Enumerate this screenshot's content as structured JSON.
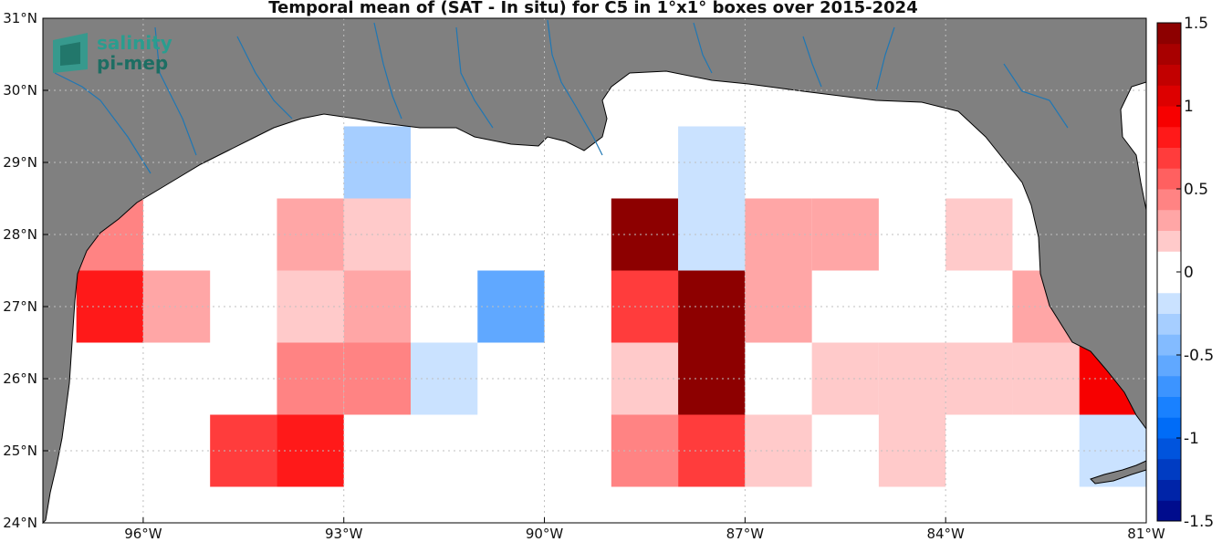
{
  "title": "Temporal mean of (SAT - In situ) for C5 in 1°x1° boxes over 2015-2024",
  "logo": {
    "line1": "salinity",
    "line2": "pi-mep"
  },
  "colors": {
    "land": "#808080",
    "river": "#1f77b4",
    "grid": "#bfbfbf"
  },
  "axes": {
    "lon_range": [
      -97.5,
      -81
    ],
    "lat_range": [
      24,
      31
    ],
    "lat_ticks": [
      {
        "value": 31,
        "label": "31°N"
      },
      {
        "value": 30,
        "label": "30°N"
      },
      {
        "value": 29,
        "label": "29°N"
      },
      {
        "value": 28,
        "label": "28°N"
      },
      {
        "value": 27,
        "label": "27°N"
      },
      {
        "value": 26,
        "label": "26°N"
      },
      {
        "value": 25,
        "label": "25°N"
      },
      {
        "value": 24,
        "label": "24°N"
      }
    ],
    "lon_ticks": [
      {
        "value": -96,
        "label": "96°W"
      },
      {
        "value": -93,
        "label": "93°W"
      },
      {
        "value": -90,
        "label": "90°W"
      },
      {
        "value": -87,
        "label": "87°W"
      },
      {
        "value": -84,
        "label": "84°W"
      },
      {
        "value": -81,
        "label": "81°W"
      }
    ]
  },
  "colorbar": {
    "range": [
      -1.5,
      1.5
    ],
    "ticks": [
      {
        "value": 1.5,
        "label": "1.5"
      },
      {
        "value": 1,
        "label": "1"
      },
      {
        "value": 0.5,
        "label": "0.5"
      },
      {
        "value": 0,
        "label": "0"
      },
      {
        "value": -0.5,
        "label": "-0.5"
      },
      {
        "value": -1,
        "label": "-1"
      },
      {
        "value": -1.5,
        "label": "-1.5"
      }
    ]
  },
  "chart_data": {
    "type": "heatmap",
    "title": "Temporal mean of (SAT - In situ) for C5 in 1°x1° boxes over 2015-2024",
    "box_size_deg": 1,
    "x_unit": "longitude (°)",
    "y_unit": "latitude (°)",
    "grid": "dotted",
    "cells": [
      {
        "lon": -92.5,
        "lat": 29,
        "value": -0.3
      },
      {
        "lon": -87.5,
        "lat": 29,
        "value": -0.15
      },
      {
        "lon": -96.5,
        "lat": 28,
        "value": 0.45
      },
      {
        "lon": -93.5,
        "lat": 28,
        "value": 0.3
      },
      {
        "lon": -92.5,
        "lat": 28,
        "value": 0.2
      },
      {
        "lon": -88.5,
        "lat": 28,
        "value": 1.5
      },
      {
        "lon": -87.5,
        "lat": 28,
        "value": -0.25
      },
      {
        "lon": -86.5,
        "lat": 28,
        "value": 0.3
      },
      {
        "lon": -85.5,
        "lat": 28,
        "value": 0.3
      },
      {
        "lon": -83.5,
        "lat": 28,
        "value": 0.2
      },
      {
        "lon": -96.5,
        "lat": 27,
        "value": 0.85
      },
      {
        "lon": -95.5,
        "lat": 27,
        "value": 0.3
      },
      {
        "lon": -93.5,
        "lat": 27,
        "value": 0.2
      },
      {
        "lon": -92.5,
        "lat": 27,
        "value": 0.35
      },
      {
        "lon": -90.5,
        "lat": 27,
        "value": -0.55
      },
      {
        "lon": -88.5,
        "lat": 27,
        "value": 0.7
      },
      {
        "lon": -87.5,
        "lat": 27,
        "value": 1.5
      },
      {
        "lon": -86.5,
        "lat": 27,
        "value": 0.35
      },
      {
        "lon": -82.5,
        "lat": 27,
        "value": 0.3
      },
      {
        "lon": -93.5,
        "lat": 26,
        "value": 0.45
      },
      {
        "lon": -92.5,
        "lat": 26,
        "value": 0.45
      },
      {
        "lon": -91.5,
        "lat": 26,
        "value": -0.15
      },
      {
        "lon": -88.5,
        "lat": 26,
        "value": 0.2
      },
      {
        "lon": -87.5,
        "lat": 26,
        "value": 1.5
      },
      {
        "lon": -85.5,
        "lat": 26,
        "value": 0.2
      },
      {
        "lon": -84.5,
        "lat": 26,
        "value": 0.2
      },
      {
        "lon": -83.5,
        "lat": 26,
        "value": 0.2
      },
      {
        "lon": -82.5,
        "lat": 26,
        "value": 0.2
      },
      {
        "lon": -81.5,
        "lat": 26,
        "value": 0.9
      },
      {
        "lon": -94.5,
        "lat": 25,
        "value": 0.7
      },
      {
        "lon": -93.5,
        "lat": 25,
        "value": 0.8
      },
      {
        "lon": -88.5,
        "lat": 25,
        "value": 0.45
      },
      {
        "lon": -87.5,
        "lat": 25,
        "value": 0.7
      },
      {
        "lon": -86.5,
        "lat": 25,
        "value": 0.2
      },
      {
        "lon": -84.5,
        "lat": 25,
        "value": 0.2
      },
      {
        "lon": -81.5,
        "lat": 25,
        "value": -0.25
      }
    ]
  }
}
